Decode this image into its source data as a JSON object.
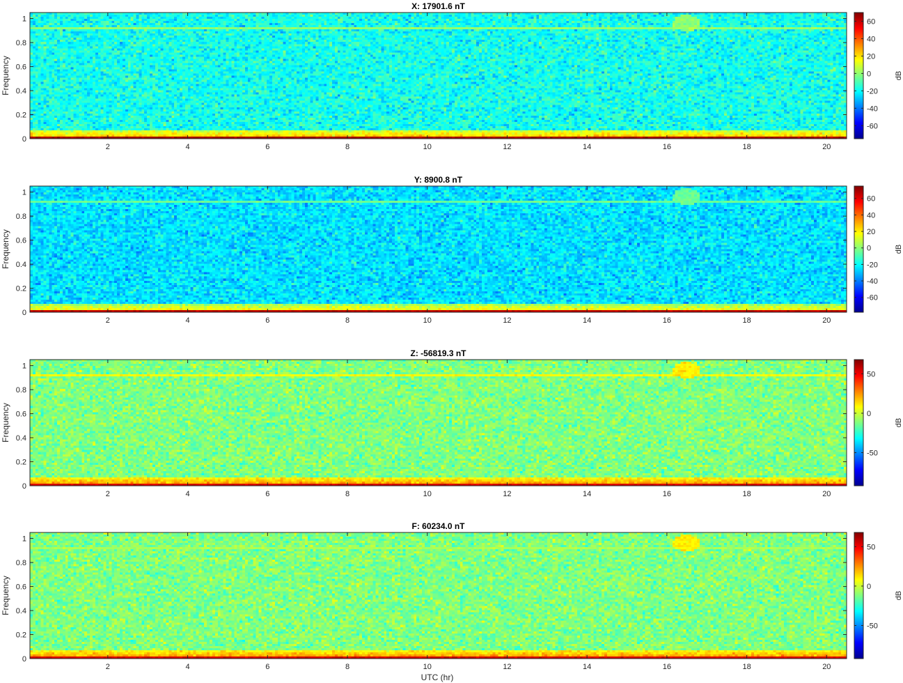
{
  "figure": {
    "xlabel": "UTC (hr)"
  },
  "colorbar": {
    "label": "dB"
  },
  "colors": {
    "jet": [
      "#00008f",
      "#0000ff",
      "#0080ff",
      "#00ffff",
      "#80ff80",
      "#ffff00",
      "#ff8000",
      "#ff0000",
      "#800000"
    ]
  },
  "chart_data": [
    {
      "type": "heatmap",
      "title": "X: 17901.6 nT",
      "xlabel": "",
      "ylabel": "Frequency",
      "xlim": [
        0.05,
        20.5
      ],
      "ylim": [
        0,
        1.05
      ],
      "xticks": [
        2,
        4,
        6,
        8,
        10,
        12,
        14,
        16,
        18,
        20
      ],
      "yticks": [
        0,
        0.2,
        0.4,
        0.6,
        0.8,
        1
      ],
      "colorbar": {
        "label": "dB",
        "clim": [
          -75,
          70
        ],
        "ticks": [
          -60,
          -40,
          -20,
          0,
          20,
          40,
          60
        ]
      },
      "features": {
        "background_db": -18,
        "low_freq_band_db": 25,
        "lowest_freq_db": 65,
        "line_frequency": 0.92,
        "line_db": 0,
        "blob": {
          "x": 16.5,
          "y": 0.96,
          "db": 0
        }
      }
    },
    {
      "type": "heatmap",
      "title": "Y: 8900.8 nT",
      "xlabel": "",
      "ylabel": "Frequency",
      "xlim": [
        0.05,
        20.5
      ],
      "ylim": [
        0,
        1.05
      ],
      "xticks": [
        2,
        4,
        6,
        8,
        10,
        12,
        14,
        16,
        18,
        20
      ],
      "yticks": [
        0,
        0.2,
        0.4,
        0.6,
        0.8,
        1
      ],
      "colorbar": {
        "label": "dB",
        "clim": [
          -78,
          75
        ],
        "ticks": [
          -60,
          -40,
          -20,
          0,
          20,
          40,
          60
        ]
      },
      "features": {
        "background_db": -25,
        "low_freq_band_db": 20,
        "lowest_freq_db": 65,
        "line_frequency": 0.92,
        "line_db": -5,
        "blob": {
          "x": 16.5,
          "y": 0.96,
          "db": -5
        }
      }
    },
    {
      "type": "heatmap",
      "title": "Z: -56819.3 nT",
      "xlabel": "",
      "ylabel": "Frequency",
      "xlim": [
        0.05,
        20.5
      ],
      "ylim": [
        0,
        1.05
      ],
      "xticks": [
        2,
        4,
        6,
        8,
        10,
        12,
        14,
        16,
        18,
        20
      ],
      "yticks": [
        0,
        0.2,
        0.4,
        0.6,
        0.8,
        1
      ],
      "colorbar": {
        "label": "dB",
        "clim": [
          -92,
          68
        ],
        "ticks": [
          -50,
          0,
          50
        ]
      },
      "features": {
        "background_db": -12,
        "low_freq_band_db": 25,
        "lowest_freq_db": 55,
        "line_frequency": 0.92,
        "line_db": 8,
        "blob": {
          "x": 16.5,
          "y": 0.96,
          "db": 10
        }
      }
    },
    {
      "type": "heatmap",
      "title": "F: 60234.0 nT",
      "xlabel": "UTC (hr)",
      "ylabel": "Frequency",
      "xlim": [
        0.05,
        20.5
      ],
      "ylim": [
        0,
        1.05
      ],
      "xticks": [
        2,
        4,
        6,
        8,
        10,
        12,
        14,
        16,
        18,
        20
      ],
      "yticks": [
        0,
        0.2,
        0.4,
        0.6,
        0.8,
        1
      ],
      "colorbar": {
        "label": "dB",
        "clim": [
          -92,
          68
        ],
        "ticks": [
          -50,
          0,
          50
        ]
      },
      "features": {
        "background_db": -12,
        "low_freq_band_db": 25,
        "lowest_freq_db": 55,
        "line_frequency": 0.92,
        "line_db": -5,
        "blob": {
          "x": 16.5,
          "y": 0.96,
          "db": 10
        }
      }
    }
  ]
}
